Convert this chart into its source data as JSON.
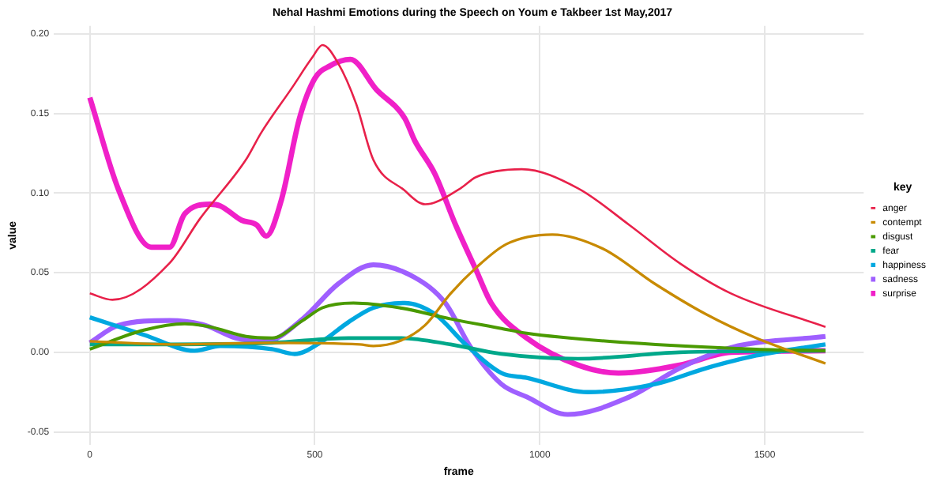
{
  "chart_data": {
    "type": "line",
    "title": "Nehal Hashmi Emotions during the Speech on Youm e Takbeer 1st May,2017",
    "xlabel": "frame",
    "ylabel": "value",
    "legend_title": "key",
    "legend": "right",
    "grid": true,
    "marker": "none",
    "line_style": "solid",
    "xlim": [
      -80,
      1720
    ],
    "xticks": [
      0,
      500,
      1000,
      1500
    ],
    "ylim": [
      -0.058,
      0.205
    ],
    "yticks": [
      {
        "value": -0.05,
        "label": "-0.05"
      },
      {
        "value": 0,
        "label": "0.00"
      },
      {
        "value": 0.05,
        "label": "0.05"
      },
      {
        "value": 0.1,
        "label": "0.10"
      },
      {
        "value": 0.15,
        "label": "0.15"
      },
      {
        "value": 0.2,
        "label": "0.20"
      }
    ],
    "series": [
      {
        "name": "anger",
        "color": "#e8214a",
        "x": [
          0,
          50,
          177,
          245,
          347,
          381,
          449,
          494,
          517,
          551,
          592,
          630,
          698,
          745,
          824,
          858,
          960,
          1085,
          1199,
          1311,
          1425,
          1635
        ],
        "values": [
          0.037,
          0.033,
          0.056,
          0.084,
          0.121,
          0.138,
          0.166,
          0.185,
          0.193,
          0.182,
          0.156,
          0.121,
          0.102,
          0.093,
          0.103,
          0.11,
          0.115,
          0.103,
          0.08,
          0.056,
          0.037,
          0.016
        ]
      },
      {
        "name": "contempt",
        "color": "#c88a00",
        "x": [
          0,
          177,
          405,
          600,
          630,
          688,
          745,
          802,
          858,
          926,
          1028,
          1141,
          1256,
          1369,
          1481,
          1635
        ],
        "values": [
          0.007,
          0.005,
          0.006,
          0.005,
          0.004,
          0.007,
          0.017,
          0.037,
          0.053,
          0.068,
          0.074,
          0.065,
          0.043,
          0.024,
          0.009,
          -0.007
        ]
      },
      {
        "name": "disgust",
        "color": "#4a9a00",
        "x": [
          0,
          120,
          211,
          268,
          347,
          405,
          473,
          517,
          586,
          688,
          802,
          915,
          971,
          1199,
          1481,
          1635
        ],
        "values": [
          0.002,
          0.014,
          0.018,
          0.016,
          0.01,
          0.009,
          0.02,
          0.028,
          0.031,
          0.028,
          0.021,
          0.015,
          0.012,
          0.006,
          0.002,
          0.001
        ]
      },
      {
        "name": "fear",
        "color": "#00a88a",
        "x": [
          0,
          177,
          405,
          575,
          688,
          802,
          915,
          1085,
          1311,
          1635
        ],
        "values": [
          0.005,
          0.005,
          0.006,
          0.009,
          0.009,
          0.005,
          -0.001,
          -0.004,
          0,
          0.001
        ]
      },
      {
        "name": "happiness",
        "color": "#00a8e0",
        "x": [
          0,
          120,
          233,
          290,
          405,
          455,
          517,
          575,
          630,
          700,
          767,
          835,
          915,
          971,
          1107,
          1256,
          1369,
          1481,
          1635
        ],
        "values": [
          0.022,
          0.011,
          0.001,
          0.004,
          0.002,
          -0.001,
          0.007,
          0.019,
          0.028,
          0.031,
          0.024,
          0.005,
          -0.013,
          -0.016,
          -0.025,
          -0.02,
          -0.01,
          -0.002,
          0.005
        ]
      },
      {
        "name": "sadness",
        "color": "#9f5fff",
        "x": [
          0,
          64,
          177,
          256,
          324,
          392,
          473,
          552,
          630,
          722,
          790,
          847,
          915,
          971,
          1062,
          1199,
          1311,
          1425,
          1635
        ],
        "values": [
          0.006,
          0.017,
          0.02,
          0.017,
          0.009,
          0.007,
          0.021,
          0.043,
          0.055,
          0.047,
          0.031,
          0.003,
          -0.02,
          -0.028,
          -0.039,
          -0.028,
          -0.01,
          0.003,
          0.01
        ]
      },
      {
        "name": "surprise",
        "color": "#f020c8",
        "x": [
          0,
          64,
          137,
          177,
          211,
          268,
          290,
          337,
          371,
          392,
          426,
          466,
          500,
          534,
          579,
          637,
          700,
          722,
          767,
          813,
          858,
          892,
          971,
          1085,
          1175,
          1311,
          1425,
          1635
        ],
        "values": [
          0.16,
          0.102,
          0.066,
          0.066,
          0.087,
          0.093,
          0.092,
          0.083,
          0.08,
          0.073,
          0.096,
          0.147,
          0.172,
          0.18,
          0.184,
          0.165,
          0.147,
          0.133,
          0.112,
          0.08,
          0.052,
          0.031,
          0.009,
          -0.008,
          -0.013,
          -0.008,
          0,
          0.001
        ]
      }
    ]
  }
}
